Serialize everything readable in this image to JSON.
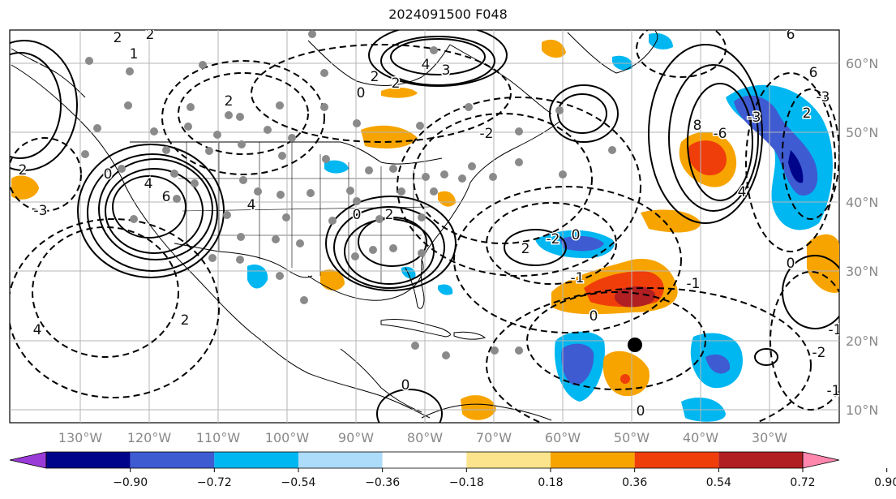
{
  "title": "2024091500 F048",
  "map": {
    "lon_labels": [
      "130°W",
      "120°W",
      "110°W",
      "100°W",
      "90°W",
      "80°W",
      "70°W",
      "60°W",
      "50°W",
      "40°W",
      "30°W"
    ],
    "lat_labels": [
      "60°N",
      "50°N",
      "40°N",
      "30°N",
      "20°N",
      "10°N"
    ],
    "contour_labels": [
      "2",
      "2",
      "1",
      "4",
      "3",
      "2",
      "2",
      "4",
      "6",
      "0",
      "-3",
      "2",
      "6",
      "-3",
      "2",
      "4",
      "0",
      "0",
      "2",
      "-2",
      "0",
      "-1",
      "2",
      "-2",
      "-1",
      "4",
      "8",
      "-6",
      "-3",
      "4",
      "6",
      "2",
      "2",
      "0",
      "0",
      "-2",
      "-1",
      "0",
      "-1",
      "0"
    ],
    "colors": {
      "strong_red": "#b11f22",
      "red_orange": "#f03e0b",
      "orange": "#f7a400",
      "light_yellow": "#fbe48b",
      "light_blue": "#acdcf9",
      "cyan_blue": "#00b7f1",
      "royal_blue": "#3e5bd2",
      "navy": "#00048a",
      "purple": "#9a3bd8",
      "pink": "#ff86ad",
      "dots": "#8a8a8a"
    }
  },
  "colorbar": {
    "ticks": [
      "−0.90",
      "−0.72",
      "−0.54",
      "−0.36",
      "−0.18",
      "0.18",
      "0.36",
      "0.54",
      "0.72",
      "0.90"
    ],
    "segment_colors": [
      "#9a3bd8",
      "#00048a",
      "#3e5bd2",
      "#00b7f1",
      "#acdcf9",
      "#ffffff",
      "#fbe48b",
      "#f7a400",
      "#f03e0b",
      "#b11f22",
      "#ff86ad"
    ]
  }
}
